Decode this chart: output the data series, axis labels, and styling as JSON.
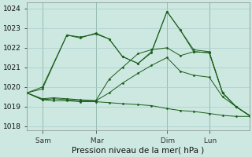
{
  "background_color": "#cce8e0",
  "grid_color": "#aacccc",
  "line_color": "#1a5e1a",
  "marker_color": "#1a5e1a",
  "xlabel": "Pression niveau de la mer( hPa )",
  "ylim": [
    1017.8,
    1024.3
  ],
  "yticks": [
    1018,
    1019,
    1020,
    1021,
    1022,
    1023,
    1024
  ],
  "xtick_labels": [
    " Sam",
    " Mar",
    " Dim",
    " Lun"
  ],
  "xtick_positions": [
    0.07,
    0.31,
    0.63,
    0.82
  ],
  "vline_positions": [
    0.07,
    0.31,
    0.63,
    0.82
  ],
  "lines": [
    {
      "x": [
        0.0,
        0.07,
        0.12,
        0.18,
        0.24,
        0.31,
        0.37,
        0.43,
        0.5,
        0.56,
        0.63,
        0.69,
        0.75,
        0.82,
        0.88,
        0.94,
        1.0
      ],
      "y": [
        1019.7,
        1019.35,
        1019.3,
        1019.3,
        1019.25,
        1019.25,
        1019.2,
        1019.15,
        1019.1,
        1019.05,
        1018.9,
        1018.8,
        1018.75,
        1018.65,
        1018.55,
        1018.5,
        1018.5
      ]
    },
    {
      "x": [
        0.0,
        0.07,
        0.12,
        0.18,
        0.24,
        0.31,
        0.37,
        0.43,
        0.5,
        0.56,
        0.63,
        0.69,
        0.75,
        0.82,
        0.88,
        0.94,
        1.0
      ],
      "y": [
        1019.7,
        1019.35,
        1019.4,
        1019.35,
        1019.3,
        1019.3,
        1019.7,
        1020.2,
        1020.7,
        1021.1,
        1021.5,
        1020.8,
        1020.6,
        1020.5,
        1019.5,
        1019.0,
        1018.55
      ]
    },
    {
      "x": [
        0.0,
        0.07,
        0.12,
        0.18,
        0.24,
        0.31,
        0.37,
        0.43,
        0.5,
        0.56,
        0.63,
        0.69,
        0.75,
        0.82,
        0.88,
        0.94,
        1.0
      ],
      "y": [
        1019.7,
        1019.4,
        1019.45,
        1019.4,
        1019.35,
        1019.3,
        1020.4,
        1021.0,
        1021.7,
        1021.9,
        1022.0,
        1021.6,
        1021.8,
        1021.75,
        1019.7,
        1019.0,
        1018.55
      ]
    },
    {
      "x": [
        0.0,
        0.07,
        0.18,
        0.24,
        0.31,
        0.37,
        0.43,
        0.5,
        0.56,
        0.63,
        0.69,
        0.75,
        0.82,
        0.88,
        0.94,
        1.0
      ],
      "y": [
        1019.7,
        1019.9,
        1022.65,
        1022.5,
        1022.75,
        1022.45,
        1021.55,
        1021.2,
        1021.75,
        1023.85,
        1022.9,
        1021.8,
        1021.75,
        1019.7,
        1019.0,
        1018.55
      ]
    },
    {
      "x": [
        0.0,
        0.07,
        0.18,
        0.24,
        0.31,
        0.37,
        0.43,
        0.5,
        0.56,
        0.63,
        0.69,
        0.75,
        0.82,
        0.88,
        0.94,
        1.0
      ],
      "y": [
        1019.7,
        1020.0,
        1022.65,
        1022.55,
        1022.7,
        1022.45,
        1021.55,
        1021.2,
        1021.8,
        1023.85,
        1022.9,
        1021.9,
        1021.8,
        1019.7,
        1019.0,
        1018.55
      ]
    }
  ],
  "figsize": [
    3.2,
    2.0
  ],
  "dpi": 100
}
